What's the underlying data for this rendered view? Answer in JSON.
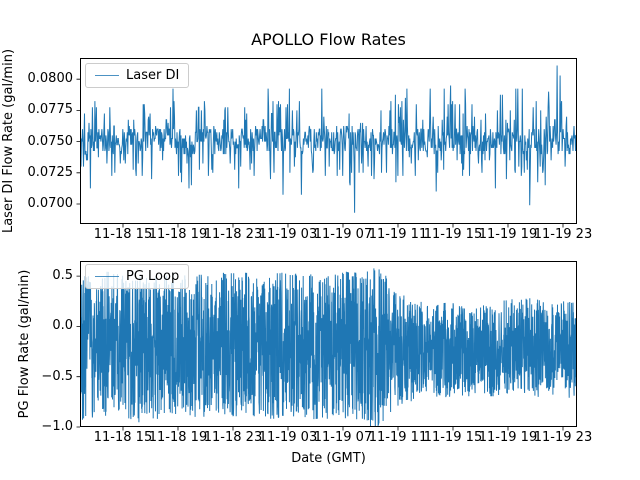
{
  "figure": {
    "title": "APOLLO Flow Rates",
    "background": "#ffffff",
    "text_color": "#000000",
    "line_color": "#1f77b4"
  },
  "chart_data": [
    {
      "type": "line",
      "name": "laser-di-subplot",
      "title": "",
      "ylabel": "Laser DI Flow Rate (gal/min)",
      "legend": {
        "label": "Laser DI",
        "position": "upper left"
      },
      "series_color": "#1f77b4",
      "grid": false,
      "ylim": [
        0.0684,
        0.0817
      ],
      "yticks": [
        "0.0700",
        "0.0725",
        "0.0750",
        "0.0775",
        "0.0800"
      ],
      "ytick_values": [
        0.07,
        0.0725,
        0.075,
        0.0775,
        0.08
      ],
      "xticklabels": [
        "11-18 15",
        "11-18 19",
        "11-18 23",
        "11-19 03",
        "11-19 07",
        "11-19 11",
        "11-19 15",
        "11-19 19",
        "11-19 23"
      ],
      "x_tick_interval_hours": 4,
      "signal": {
        "description": "Quantized flow noise: dense core band ~0.0740-0.0762 with frequent short spikes up to ~0.0783 and down to ~0.0722, rare extremes listed in special_points.",
        "n_points": 1000,
        "seed": 42,
        "quantize_step": 0.00025,
        "core_range": [
          0.074,
          0.0762
        ],
        "spikes": [
          {
            "prob": 0.1,
            "range": [
              0.0765,
              0.0783
            ]
          },
          {
            "prob": 0.02,
            "range": [
              0.0783,
              0.0794
            ]
          },
          {
            "prob": 0.08,
            "range": [
              0.0722,
              0.0738
            ]
          },
          {
            "prob": 0.02,
            "range": [
              0.0708,
              0.072
            ]
          }
        ],
        "special_points": [
          {
            "frac": 0.553,
            "value": 0.0693
          },
          {
            "frac": 0.905,
            "value": 0.0699
          },
          {
            "frac": 0.96,
            "value": 0.0811
          },
          {
            "frac": 0.966,
            "value": 0.0803
          }
        ]
      }
    },
    {
      "type": "line",
      "name": "pg-loop-subplot",
      "title": "",
      "xlabel": "Date (GMT)",
      "ylabel": "PG Flow Rate (gal/min)",
      "legend": {
        "label": "PG Loop",
        "position": "upper left"
      },
      "series_color": "#1f77b4",
      "grid": false,
      "ylim": [
        -1.0,
        0.65
      ],
      "yticks": [
        "0.5",
        "0.0",
        "−0.5",
        "−1.0"
      ],
      "ytick_values": [
        0.5,
        0.0,
        -0.5,
        -1.0
      ],
      "xticklabels": [
        "11-18 15",
        "11-18 19",
        "11-18 23",
        "11-19 03",
        "11-19 07",
        "11-19 11",
        "11-19 15",
        "11-19 19",
        "11-19 23"
      ],
      "x_tick_interval_hours": 4,
      "signal": {
        "description": "Dense oscillation filling an envelope: roughly +0.45 to -0.85 until ~11-19 10:00, then amplitude drops to roughly +0.17 to -0.62 for the rest of the record.",
        "n_points": 2600,
        "seed": 7,
        "spike_prob": 0.06,
        "spike_extra": 0.08,
        "envelope": [
          {
            "frac": 0.0,
            "hi": 0.44,
            "lo": -0.86
          },
          {
            "frac": 0.06,
            "hi": 0.47,
            "lo": -0.8
          },
          {
            "frac": 0.12,
            "hi": 0.43,
            "lo": -0.88
          },
          {
            "frac": 0.18,
            "hi": 0.46,
            "lo": -0.82
          },
          {
            "frac": 0.24,
            "hi": 0.44,
            "lo": -0.86
          },
          {
            "frac": 0.3,
            "hi": 0.47,
            "lo": -0.81
          },
          {
            "frac": 0.36,
            "hi": 0.44,
            "lo": -0.85
          },
          {
            "frac": 0.42,
            "hi": 0.46,
            "lo": -0.83
          },
          {
            "frac": 0.48,
            "hi": 0.44,
            "lo": -0.87
          },
          {
            "frac": 0.54,
            "hi": 0.48,
            "lo": -0.84
          },
          {
            "frac": 0.58,
            "hi": 0.52,
            "lo": -0.93
          },
          {
            "frac": 0.61,
            "hi": 0.5,
            "lo": -0.95
          },
          {
            "frac": 0.63,
            "hi": 0.3,
            "lo": -0.78
          },
          {
            "frac": 0.66,
            "hi": 0.2,
            "lo": -0.68
          },
          {
            "frac": 0.7,
            "hi": 0.16,
            "lo": -0.62
          },
          {
            "frac": 0.75,
            "hi": 0.19,
            "lo": -0.65
          },
          {
            "frac": 0.8,
            "hi": 0.14,
            "lo": -0.6
          },
          {
            "frac": 0.85,
            "hi": 0.18,
            "lo": -0.64
          },
          {
            "frac": 0.9,
            "hi": 0.21,
            "lo": -0.61
          },
          {
            "frac": 0.95,
            "hi": 0.16,
            "lo": -0.65
          },
          {
            "frac": 1.0,
            "hi": 0.19,
            "lo": -0.62
          }
        ]
      }
    }
  ]
}
